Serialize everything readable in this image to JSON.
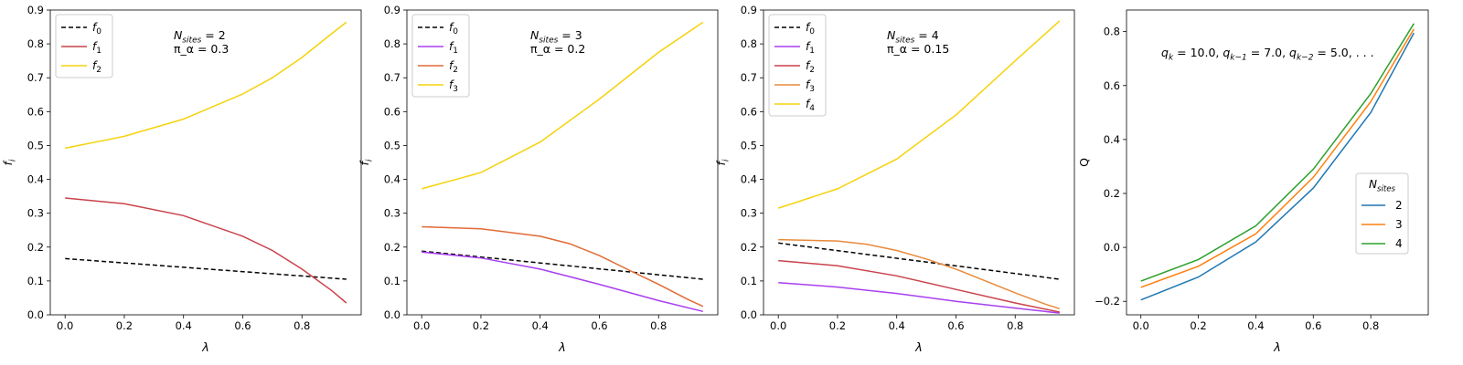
{
  "chart_data": [
    {
      "type": "line",
      "xlabel": "λ",
      "ylabel": "f_i",
      "xlim": [
        -0.05,
        1.0
      ],
      "ylim": [
        0.0,
        0.9
      ],
      "xticks": [
        "0.0",
        "0.2",
        "0.4",
        "0.6",
        "0.8"
      ],
      "yticks": [
        "0.0",
        "0.1",
        "0.2",
        "0.3",
        "0.4",
        "0.5",
        "0.6",
        "0.7",
        "0.8",
        "0.9"
      ],
      "annotation": [
        "N_sites = 2",
        "π_α = 0.3"
      ],
      "legend": "top-left",
      "series": [
        {
          "name": "f0",
          "color": "#000000",
          "dash": true,
          "x": [
            0,
            0.95
          ],
          "values": [
            0.166,
            0.105
          ]
        },
        {
          "name": "f1",
          "color": "#c9424b",
          "dash": false,
          "x": [
            0,
            0.2,
            0.4,
            0.6,
            0.7,
            0.8,
            0.9,
            0.95
          ],
          "values": [
            0.345,
            0.328,
            0.293,
            0.232,
            0.19,
            0.135,
            0.072,
            0.035
          ]
        },
        {
          "name": "f2",
          "color": "#f6d20c",
          "dash": false,
          "x": [
            0,
            0.2,
            0.4,
            0.6,
            0.7,
            0.8,
            0.9,
            0.95
          ],
          "values": [
            0.492,
            0.527,
            0.578,
            0.652,
            0.7,
            0.76,
            0.83,
            0.864
          ]
        }
      ]
    },
    {
      "type": "line",
      "xlabel": "λ",
      "ylabel": "f_i",
      "xlim": [
        -0.05,
        1.0
      ],
      "ylim": [
        0.0,
        0.9
      ],
      "xticks": [
        "0.0",
        "0.2",
        "0.4",
        "0.6",
        "0.8"
      ],
      "yticks": [
        "0.0",
        "0.1",
        "0.2",
        "0.3",
        "0.4",
        "0.5",
        "0.6",
        "0.7",
        "0.8",
        "0.9"
      ],
      "annotation": [
        "N_sites = 3",
        "π_α = 0.2"
      ],
      "legend": "top-left",
      "series": [
        {
          "name": "f0",
          "color": "#000000",
          "dash": true,
          "x": [
            0,
            0.95
          ],
          "values": [
            0.188,
            0.105
          ]
        },
        {
          "name": "f1",
          "color": "#a83ff0",
          "dash": false,
          "x": [
            0,
            0.2,
            0.4,
            0.6,
            0.8,
            0.95
          ],
          "values": [
            0.185,
            0.168,
            0.135,
            0.09,
            0.042,
            0.01
          ]
        },
        {
          "name": "f2",
          "color": "#e06a35",
          "dash": false,
          "x": [
            0,
            0.2,
            0.4,
            0.5,
            0.6,
            0.7,
            0.8,
            0.9,
            0.95
          ],
          "values": [
            0.26,
            0.254,
            0.232,
            0.21,
            0.175,
            0.132,
            0.09,
            0.045,
            0.025
          ]
        },
        {
          "name": "f3",
          "color": "#f6d20c",
          "dash": false,
          "x": [
            0,
            0.2,
            0.4,
            0.6,
            0.8,
            0.95
          ],
          "values": [
            0.372,
            0.42,
            0.51,
            0.637,
            0.775,
            0.864
          ]
        }
      ]
    },
    {
      "type": "line",
      "xlabel": "λ",
      "ylabel": "f_i",
      "xlim": [
        -0.05,
        1.0
      ],
      "ylim": [
        0.0,
        0.9
      ],
      "xticks": [
        "0.0",
        "0.2",
        "0.4",
        "0.6",
        "0.8"
      ],
      "yticks": [
        "0.0",
        "0.1",
        "0.2",
        "0.3",
        "0.4",
        "0.5",
        "0.6",
        "0.7",
        "0.8",
        "0.9"
      ],
      "annotation": [
        "N_sites = 4",
        "π_α = 0.15"
      ],
      "legend": "top-left",
      "series": [
        {
          "name": "f0",
          "color": "#000000",
          "dash": true,
          "x": [
            0,
            0.95
          ],
          "values": [
            0.212,
            0.105
          ]
        },
        {
          "name": "f1",
          "color": "#a83ff0",
          "dash": false,
          "x": [
            0,
            0.2,
            0.4,
            0.6,
            0.8,
            0.95
          ],
          "values": [
            0.095,
            0.082,
            0.063,
            0.04,
            0.02,
            0.005
          ]
        },
        {
          "name": "f2",
          "color": "#c9424b",
          "dash": false,
          "x": [
            0,
            0.2,
            0.4,
            0.6,
            0.8,
            0.95
          ],
          "values": [
            0.16,
            0.145,
            0.115,
            0.075,
            0.035,
            0.008
          ]
        },
        {
          "name": "f3",
          "color": "#e88a3b",
          "dash": false,
          "x": [
            0,
            0.2,
            0.3,
            0.4,
            0.5,
            0.6,
            0.7,
            0.8,
            0.9,
            0.95
          ],
          "values": [
            0.222,
            0.218,
            0.208,
            0.19,
            0.165,
            0.135,
            0.1,
            0.065,
            0.032,
            0.018
          ]
        },
        {
          "name": "f4",
          "color": "#f6d20c",
          "dash": false,
          "x": [
            0,
            0.2,
            0.4,
            0.6,
            0.8,
            0.95
          ],
          "values": [
            0.315,
            0.372,
            0.46,
            0.59,
            0.75,
            0.868
          ]
        }
      ]
    },
    {
      "type": "line",
      "xlabel": "λ",
      "ylabel": "Q",
      "xlim": [
        -0.05,
        1.0
      ],
      "ylim": [
        -0.25,
        0.88
      ],
      "xticks": [
        "0.0",
        "0.2",
        "0.4",
        "0.6",
        "0.8"
      ],
      "yticks": [
        "−0.2",
        "0.0",
        "0.2",
        "0.4",
        "0.6",
        "0.8"
      ],
      "annotation": [
        "q_k = 10.0, q_{k−1} = 7.0, q_{k−2} = 5.0, . . ."
      ],
      "legend": "center-right",
      "legend_title": "N_sites",
      "series": [
        {
          "name": "2",
          "color": "#1f77b4",
          "dash": false,
          "x": [
            0,
            0.2,
            0.4,
            0.6,
            0.8,
            0.95
          ],
          "values": [
            -0.195,
            -0.11,
            0.02,
            0.22,
            0.5,
            0.795
          ]
        },
        {
          "name": "3",
          "color": "#ff7f0e",
          "dash": false,
          "x": [
            0,
            0.2,
            0.4,
            0.6,
            0.8,
            0.95
          ],
          "values": [
            -0.148,
            -0.07,
            0.05,
            0.26,
            0.54,
            0.81
          ]
        },
        {
          "name": "4",
          "color": "#2ca02c",
          "dash": false,
          "x": [
            0,
            0.2,
            0.4,
            0.6,
            0.8,
            0.95
          ],
          "values": [
            -0.125,
            -0.045,
            0.08,
            0.29,
            0.57,
            0.83
          ]
        }
      ]
    }
  ]
}
